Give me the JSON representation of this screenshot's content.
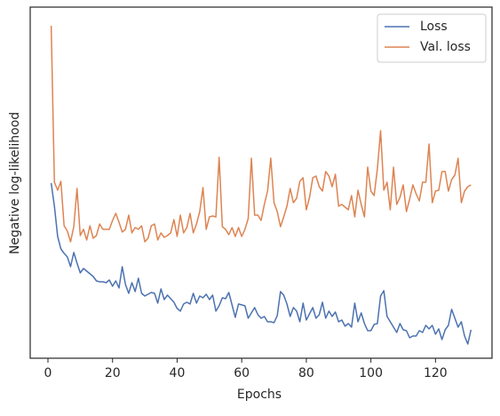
{
  "chart_data": {
    "type": "line",
    "xlabel": "Epochs",
    "ylabel": "Negative log-likelihood",
    "x": [
      1,
      2,
      3,
      4,
      5,
      6,
      7,
      8,
      9,
      10,
      11,
      12,
      13,
      14,
      15,
      16,
      17,
      18,
      19,
      20,
      21,
      22,
      23,
      24,
      25,
      26,
      27,
      28,
      29,
      30,
      31,
      32,
      33,
      34,
      35,
      36,
      37,
      38,
      39,
      40,
      41,
      42,
      43,
      44,
      45,
      46,
      47,
      48,
      49,
      50,
      51,
      52,
      53,
      54,
      55,
      56,
      57,
      58,
      59,
      60,
      61,
      62,
      63,
      64,
      65,
      66,
      67,
      68,
      69,
      70,
      71,
      72,
      73,
      74,
      75,
      76,
      77,
      78,
      79,
      80,
      81,
      82,
      83,
      84,
      85,
      86,
      87,
      88,
      89,
      90,
      91,
      92,
      93,
      94,
      95,
      96,
      97,
      98,
      99,
      100,
      101,
      102,
      103,
      104,
      105,
      106,
      107,
      108,
      109,
      110,
      111,
      112,
      113,
      114,
      115,
      116,
      117,
      118,
      119,
      120,
      121,
      122,
      123,
      124,
      125,
      126,
      127,
      128,
      129,
      130,
      131
    ],
    "series": [
      {
        "name": "Loss",
        "color": "#4c72b0",
        "values": [
          197,
          171,
          137,
          123,
          118,
          114,
          103,
          119,
          107,
          96,
          101,
          98,
          95,
          92,
          87,
          86,
          86,
          85,
          88,
          81,
          87,
          79,
          103,
          83,
          73,
          85,
          75,
          90,
          73,
          70,
          72,
          74,
          73,
          62,
          78,
          66,
          71,
          67,
          63,
          56,
          53,
          61,
          63,
          61,
          73,
          62,
          70,
          68,
          72,
          66,
          71,
          53,
          59,
          68,
          67,
          74,
          60,
          46,
          61,
          60,
          59,
          45,
          51,
          57,
          49,
          45,
          47,
          41,
          41,
          40,
          48,
          75,
          71,
          61,
          47,
          57,
          53,
          41,
          62,
          43,
          50,
          57,
          45,
          49,
          63,
          45,
          53,
          47,
          52,
          41,
          43,
          36,
          39,
          35,
          62,
          41,
          51,
          39,
          31,
          31,
          38,
          39,
          70,
          76,
          47,
          41,
          35,
          29,
          39,
          32,
          31,
          23,
          25,
          25,
          31,
          29,
          37,
          33,
          37,
          27,
          33,
          21,
          32,
          37,
          55,
          45,
          35,
          41,
          25,
          16,
          32
        ]
      },
      {
        "name": "Val. loss",
        "color": "#dd8452",
        "values": [
          374,
          198,
          189,
          199,
          149,
          143,
          131,
          148,
          191,
          138,
          145,
          133,
          149,
          135,
          138,
          151,
          145,
          145,
          145,
          155,
          163,
          153,
          142,
          145,
          161,
          141,
          147,
          145,
          149,
          131,
          135,
          149,
          151,
          133,
          141,
          136,
          138,
          141,
          156,
          137,
          161,
          141,
          147,
          163,
          141,
          151,
          165,
          192,
          145,
          159,
          160,
          159,
          226,
          148,
          145,
          139,
          147,
          137,
          147,
          137,
          145,
          157,
          225,
          161,
          161,
          155,
          173,
          188,
          225,
          175,
          165,
          148,
          159,
          171,
          191,
          175,
          180,
          199,
          203,
          167,
          181,
          203,
          205,
          193,
          188,
          210,
          205,
          193,
          207,
          171,
          173,
          170,
          167,
          183,
          159,
          189,
          173,
          159,
          215,
          188,
          183,
          213,
          256,
          189,
          198,
          167,
          215,
          173,
          181,
          195,
          165,
          179,
          195,
          185,
          177,
          198,
          198,
          241,
          175,
          188,
          189,
          210,
          210,
          188,
          201,
          206,
          225,
          175,
          188,
          193,
          195
        ]
      }
    ],
    "xlim": [
      -5.5,
      137.5
    ],
    "xticks": [
      0,
      20,
      40,
      60,
      80,
      100,
      120
    ],
    "ylim": [
      0,
      395
    ],
    "legend": "upper right"
  }
}
